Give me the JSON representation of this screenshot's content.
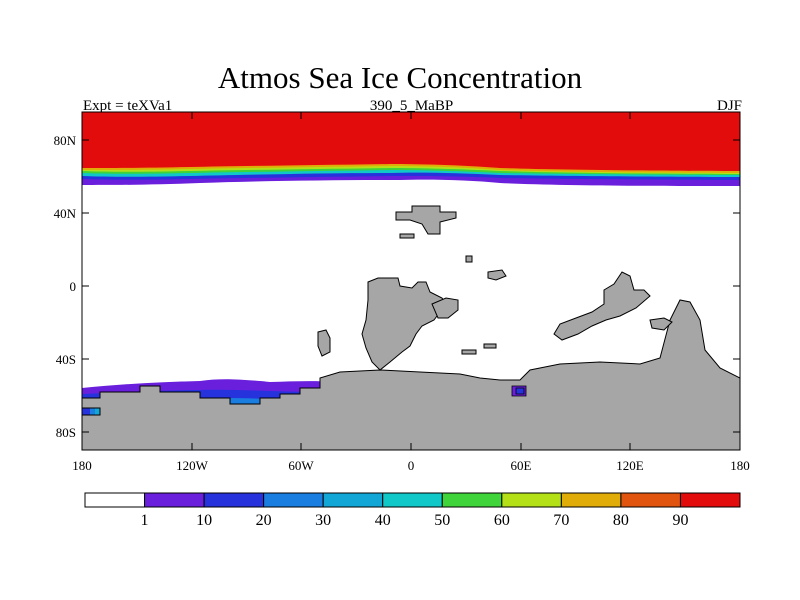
{
  "title": "Atmos Sea Ice Concentration",
  "subtitle_left": "Expt = teXVa1",
  "subtitle_center": "390_5_MaBP",
  "subtitle_right": "DJF",
  "colors": {
    "land": "#a6a6a6",
    "levels": [
      "#ffffff",
      "#6a1fdc",
      "#2633dc",
      "#1a7de0",
      "#12a6d6",
      "#10c8c8",
      "#3ed43a",
      "#b4e018",
      "#e0ac08",
      "#e05410",
      "#e20c0c"
    ]
  },
  "chart_data": {
    "type": "heatmap",
    "title": "Atmos Sea Ice Concentration",
    "variable": "sea ice concentration",
    "x_range": [
      -180,
      180
    ],
    "y_range": [
      -90,
      90
    ],
    "x_ticks": [
      "180",
      "120W",
      "60W",
      "0",
      "60E",
      "120E",
      "180"
    ],
    "y_ticks": [
      "80N",
      "40N",
      "0",
      "40S",
      "80S"
    ],
    "colorbar": {
      "levels": [
        "1",
        "10",
        "20",
        "30",
        "40",
        "50",
        "60",
        "70",
        "80",
        "90"
      ]
    }
  }
}
